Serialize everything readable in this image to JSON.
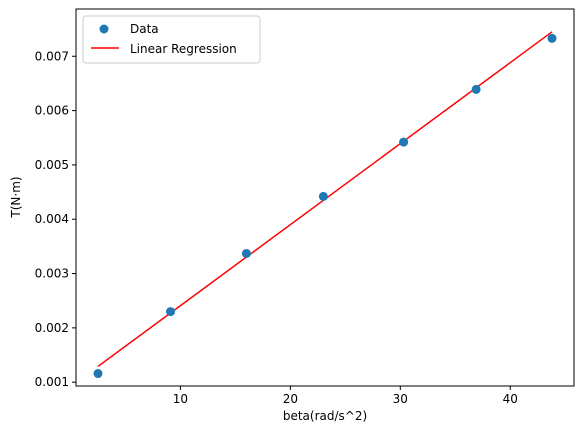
{
  "chart_data": {
    "type": "scatter",
    "xlabel": "beta(rad/s^2)",
    "ylabel": "T(N·m)",
    "xlim": [
      0.5,
      45.8
    ],
    "ylim": [
      0.00093,
      0.00787
    ],
    "xticks": [
      10,
      20,
      30,
      40
    ],
    "xtick_labels": [
      "10",
      "20",
      "30",
      "40"
    ],
    "yticks": [
      0.001,
      0.002,
      0.003,
      0.004,
      0.005,
      0.006,
      0.007
    ],
    "ytick_labels": [
      "0.001",
      "0.002",
      "0.003",
      "0.004",
      "0.005",
      "0.006",
      "0.007"
    ],
    "grid": false,
    "legend_position": "upper-left",
    "series": [
      {
        "name": "Data",
        "kind": "scatter",
        "color": "#1f77b4",
        "x": [
          2.5,
          9.1,
          16.0,
          23.0,
          30.3,
          36.9,
          43.8
        ],
        "y": [
          0.00116,
          0.0023,
          0.00337,
          0.00442,
          0.00542,
          0.00639,
          0.00733
        ]
      },
      {
        "name": "Linear Regression",
        "kind": "line",
        "color": "#ff0000",
        "x": [
          2.5,
          43.8
        ],
        "y": [
          0.00129,
          0.00745
        ]
      }
    ]
  }
}
